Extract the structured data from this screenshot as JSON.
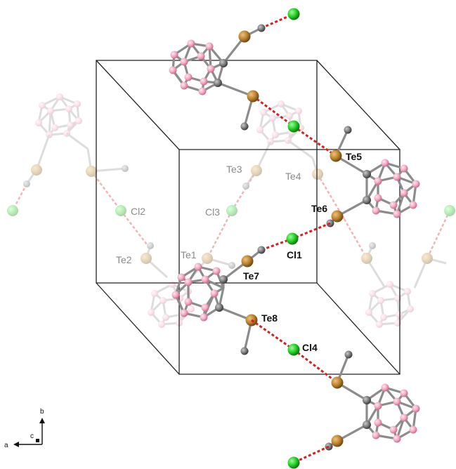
{
  "colors": {
    "background": "#ffffff",
    "cell_edge": "#222222",
    "te": "#b8812f",
    "cl": "#22cc22",
    "c": "#7a7a7a",
    "b": "#f2a9c0",
    "cage_bond": "#8c8c8c",
    "halogen_bond": "#d62020",
    "label_strong": "#111111",
    "label_faded": "#8a8a8a"
  },
  "labels": {
    "te1": "Te1",
    "te2": "Te2",
    "te3": "Te3",
    "te4": "Te4",
    "te5": "Te5",
    "te6": "Te6",
    "te7": "Te7",
    "te8": "Te8",
    "cl1": "Cl1",
    "cl2": "Cl2",
    "cl3": "Cl3",
    "cl4": "Cl4"
  },
  "axes": {
    "a": "a",
    "b": "b",
    "c": "c"
  }
}
